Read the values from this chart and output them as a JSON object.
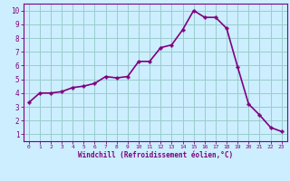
{
  "x": [
    0,
    1,
    2,
    3,
    4,
    5,
    6,
    7,
    8,
    9,
    10,
    11,
    12,
    13,
    14,
    15,
    16,
    17,
    18,
    19,
    20,
    21,
    22,
    23
  ],
  "y": [
    3.3,
    4.0,
    4.0,
    4.1,
    4.4,
    4.5,
    4.7,
    5.2,
    5.1,
    5.2,
    6.3,
    6.3,
    7.3,
    7.5,
    8.6,
    10.0,
    9.5,
    9.5,
    8.7,
    5.9,
    3.2,
    2.4,
    1.5,
    1.2
  ],
  "line_color": "#800080",
  "marker": "P",
  "marker_size": 2.5,
  "bg_color": "#cceeff",
  "grid_color": "#99cccc",
  "xlabel": "Windchill (Refroidissement éolien,°C)",
  "ylabel": "",
  "xlim": [
    -0.5,
    23.5
  ],
  "ylim": [
    0.5,
    10.5
  ],
  "yticks": [
    1,
    2,
    3,
    4,
    5,
    6,
    7,
    8,
    9,
    10
  ],
  "xticks": [
    0,
    1,
    2,
    3,
    4,
    5,
    6,
    7,
    8,
    9,
    10,
    11,
    12,
    13,
    14,
    15,
    16,
    17,
    18,
    19,
    20,
    21,
    22,
    23
  ],
  "axis_color": "#800080",
  "tick_color": "#800080",
  "label_color": "#800080",
  "line_width": 1.2
}
